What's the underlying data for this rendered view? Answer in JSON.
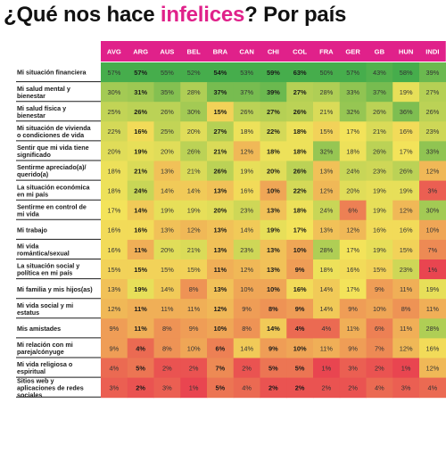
{
  "title": {
    "prefix": "¿Qué nos hace ",
    "highlight": "infelices",
    "suffix": "? Por país",
    "highlight_color": "#e0218a"
  },
  "colors": {
    "header_bg": "#e0218a",
    "scale_low": "#e8334f",
    "scale_mid": "#f3e35a",
    "scale_high": "#46ad4c",
    "row_divider": "#1a1a1a"
  },
  "chart_data": {
    "type": "heatmap",
    "title": "¿Qué nos hace infelices? Por país",
    "unit": "%",
    "bold_columns": [
      "ARG",
      "BRA",
      "CHI",
      "COL"
    ],
    "columns": [
      "AVG",
      "ARG",
      "AUS",
      "BEL",
      "BRA",
      "CAN",
      "CHI",
      "COL",
      "FRA",
      "GER",
      "GB",
      "HUN",
      "INDI"
    ],
    "rows": [
      {
        "label": [
          "Mi situación financiera"
        ],
        "values": [
          57,
          57,
          55,
          52,
          54,
          53,
          59,
          63,
          50,
          57,
          43,
          58,
          39
        ]
      },
      {
        "label": [
          "Mi salud mental y",
          "bienestar"
        ],
        "values": [
          30,
          31,
          35,
          28,
          37,
          37,
          39,
          27,
          28,
          33,
          37,
          19,
          27
        ]
      },
      {
        "label": [
          "Mi salud física y",
          "bienestar"
        ],
        "values": [
          25,
          26,
          26,
          30,
          15,
          26,
          27,
          26,
          21,
          32,
          26,
          36,
          26
        ]
      },
      {
        "label": [
          "Mi situación de vivienda",
          "o condiciones de vida"
        ],
        "values": [
          22,
          16,
          25,
          20,
          27,
          18,
          22,
          18,
          15,
          17,
          21,
          16,
          23
        ]
      },
      {
        "label": [
          "Sentir que mi vida tiene",
          "significado"
        ],
        "values": [
          20,
          19,
          20,
          26,
          21,
          12,
          18,
          18,
          32,
          18,
          26,
          17,
          33
        ]
      },
      {
        "label": [
          "Sentirme apreciado(a)/",
          "querido(a)"
        ],
        "values": [
          18,
          21,
          13,
          21,
          26,
          19,
          20,
          26,
          13,
          24,
          23,
          26,
          12
        ]
      },
      {
        "label": [
          "La situación económica",
          "en mi país"
        ],
        "values": [
          18,
          24,
          14,
          14,
          13,
          16,
          10,
          22,
          12,
          20,
          19,
          19,
          3
        ]
      },
      {
        "label": [
          "Sentirme en control de",
          "mi vida"
        ],
        "values": [
          17,
          14,
          19,
          19,
          20,
          23,
          13,
          18,
          24,
          6,
          19,
          12,
          30
        ]
      },
      {
        "label": [
          "Mi trabajo"
        ],
        "values": [
          16,
          16,
          13,
          12,
          13,
          14,
          19,
          17,
          13,
          12,
          16,
          16,
          10
        ]
      },
      {
        "label": [
          "Mi vida",
          "romántica/sexual"
        ],
        "values": [
          16,
          11,
          20,
          21,
          13,
          23,
          13,
          10,
          28,
          17,
          19,
          15,
          7
        ]
      },
      {
        "label": [
          "La situación social y",
          "política en mi país"
        ],
        "values": [
          15,
          15,
          15,
          15,
          11,
          12,
          13,
          9,
          18,
          16,
          15,
          23,
          1
        ]
      },
      {
        "label": [
          "Mi familia y mis hijos(as)"
        ],
        "values": [
          13,
          19,
          14,
          8,
          13,
          10,
          10,
          16,
          14,
          17,
          9,
          11,
          19
        ]
      },
      {
        "label": [
          "Mi vida social y mi",
          "estatus"
        ],
        "values": [
          12,
          11,
          11,
          11,
          12,
          9,
          8,
          9,
          14,
          9,
          10,
          8,
          11
        ]
      },
      {
        "label": [
          "Mis amistades"
        ],
        "values": [
          9,
          11,
          8,
          9,
          10,
          8,
          14,
          4,
          4,
          11,
          6,
          11,
          28
        ]
      },
      {
        "label": [
          "Mi relación con mi",
          "pareja/cónyuge"
        ],
        "values": [
          9,
          4,
          8,
          10,
          6,
          14,
          9,
          10,
          11,
          9,
          7,
          12,
          16
        ]
      },
      {
        "label": [
          "Mi vida religiosa o",
          "espiritual"
        ],
        "values": [
          4,
          5,
          2,
          2,
          7,
          2,
          5,
          5,
          1,
          3,
          2,
          1,
          12
        ]
      },
      {
        "label": [
          "Sitios web y",
          "aplicaciones de redes",
          "sociales"
        ],
        "values": [
          3,
          2,
          3,
          1,
          5,
          4,
          2,
          2,
          2,
          2,
          4,
          3,
          4
        ]
      }
    ]
  }
}
